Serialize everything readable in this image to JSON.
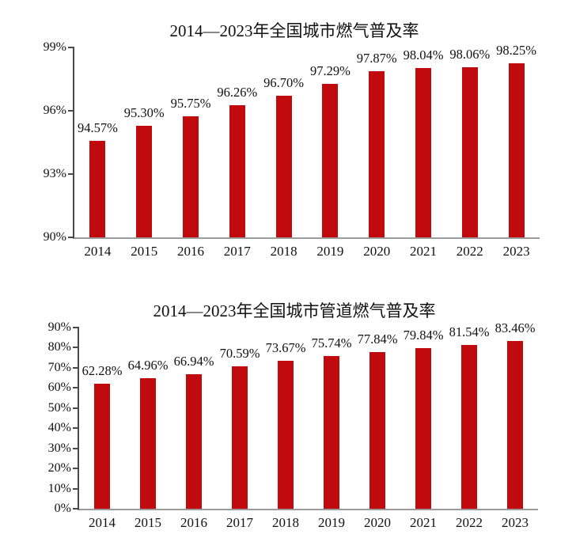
{
  "colors": {
    "bar": "#c00a0d",
    "y_axis": "#4a4a4a",
    "x_axis": "#9b9b9b",
    "text": "#111111",
    "background": "#ffffff"
  },
  "chart_data": [
    {
      "type": "bar",
      "title": "2014—2023年全国城市燃气普及率",
      "categories": [
        "2014",
        "2015",
        "2016",
        "2017",
        "2018",
        "2019",
        "2020",
        "2021",
        "2022",
        "2023"
      ],
      "values": [
        94.57,
        95.3,
        95.75,
        96.26,
        96.7,
        97.29,
        97.87,
        98.04,
        98.06,
        98.25
      ],
      "value_labels": [
        "94.57%",
        "95.30%",
        "95.75%",
        "96.26%",
        "96.70%",
        "97.29%",
        "97.87%",
        "98.04%",
        "98.06%",
        "98.25%"
      ],
      "xlabel": "",
      "ylabel": "",
      "ylim": [
        90,
        99
      ],
      "yticks": [
        {
          "v": 90,
          "label": "90%"
        },
        {
          "v": 93,
          "label": "93%"
        },
        {
          "v": 96,
          "label": "96%"
        },
        {
          "v": 99,
          "label": "99%"
        }
      ],
      "grid": false,
      "legend": null,
      "bar_color": "#c00a0d",
      "label_position": "above-bar-centered"
    },
    {
      "type": "bar",
      "title": "2014—2023年全国城市管道燃气普及率",
      "categories": [
        "2014",
        "2015",
        "2016",
        "2017",
        "2018",
        "2019",
        "2020",
        "2021",
        "2022",
        "2023"
      ],
      "values": [
        62.28,
        64.96,
        66.94,
        70.59,
        73.67,
        75.74,
        77.84,
        79.84,
        81.54,
        83.46
      ],
      "value_labels": [
        "62.28%",
        "64.96%",
        "66.94%",
        "70.59%",
        "73.67%",
        "75.74%",
        "77.84%",
        "79.84%",
        "81.54%",
        "83.46%"
      ],
      "xlabel": "",
      "ylabel": "",
      "ylim": [
        0,
        90
      ],
      "yticks": [
        {
          "v": 0,
          "label": "0%"
        },
        {
          "v": 10,
          "label": "10%"
        },
        {
          "v": 20,
          "label": "20%"
        },
        {
          "v": 30,
          "label": "30%"
        },
        {
          "v": 40,
          "label": "40%"
        },
        {
          "v": 50,
          "label": "50%"
        },
        {
          "v": 60,
          "label": "60%"
        },
        {
          "v": 70,
          "label": "70%"
        },
        {
          "v": 80,
          "label": "80%"
        },
        {
          "v": 90,
          "label": "90%"
        }
      ],
      "grid": false,
      "legend": null,
      "bar_color": "#c00a0d",
      "label_position": "above-bar-centered"
    }
  ]
}
